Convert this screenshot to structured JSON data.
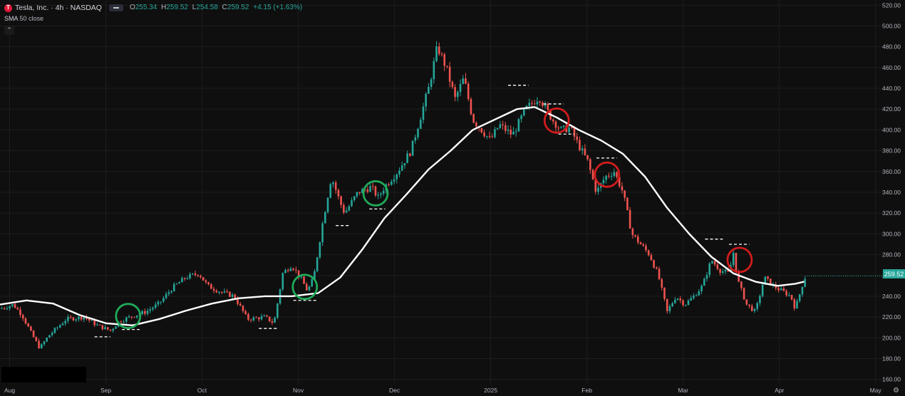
{
  "header": {
    "logo_letter": "T",
    "title": "Tesla, Inc. · 4h · NASDAQ",
    "ohlc": {
      "o_key": "O",
      "o_val": "255.34",
      "h_key": "H",
      "h_val": "259.52",
      "l_key": "L",
      "l_val": "254.58",
      "c_key": "C",
      "c_val": "259.52",
      "change": "+4.15 (+1.63%)"
    },
    "sma_name": "SMA",
    "sma_params": "50 close",
    "collapse_icon": "chevron-up-icon"
  },
  "last_price": "259.52",
  "colors": {
    "up": "#26a69a",
    "down": "#ef5350",
    "sma": "#ffffff",
    "support_circle": "#1faa59",
    "resistance_circle": "#d11c1c",
    "level_line": "#ffffff",
    "background": "#0f0f0f"
  },
  "chart_data": {
    "type": "candlestick",
    "title": "Tesla, Inc. · 4h · NASDAQ",
    "y_axis": {
      "ticks": [
        160,
        180,
        200,
        220,
        240,
        260,
        280,
        300,
        320,
        340,
        360,
        380,
        400,
        420,
        440,
        460,
        480,
        500,
        520
      ],
      "labels": [
        "160.00",
        "180.00",
        "200.00",
        "220.00",
        "240.00",
        "260.00",
        "280.00",
        "300.00",
        "320.00",
        "340.00",
        "360.00",
        "380.00",
        "400.00",
        "420.00",
        "440.00",
        "460.00",
        "480.00",
        "500.00",
        "520.00"
      ],
      "ylim": [
        155,
        525
      ]
    },
    "x_axis": {
      "labels": [
        "Aug",
        "Sep",
        "Oct",
        "Nov",
        "Dec",
        "2025",
        "Feb",
        "Mar",
        "Apr",
        "May"
      ],
      "xlim": [
        0,
        100
      ]
    },
    "grid": true,
    "price_path": [
      [
        0,
        228
      ],
      [
        1.5,
        232
      ],
      [
        2.5,
        222
      ],
      [
        3.5,
        205
      ],
      [
        4.5,
        190
      ],
      [
        5.5,
        202
      ],
      [
        6.5,
        210
      ],
      [
        7.5,
        218
      ],
      [
        9.5,
        220
      ],
      [
        11,
        212
      ],
      [
        12.5,
        207
      ],
      [
        13.5,
        216
      ],
      [
        15,
        221
      ],
      [
        16.5,
        225
      ],
      [
        18,
        233
      ],
      [
        19.5,
        248
      ],
      [
        21,
        258
      ],
      [
        22.5,
        262
      ],
      [
        23.5,
        250
      ],
      [
        25,
        244
      ],
      [
        26.5,
        240
      ],
      [
        28,
        218
      ],
      [
        30,
        220
      ],
      [
        31,
        214
      ],
      [
        32,
        262
      ],
      [
        33,
        270
      ],
      [
        34,
        258
      ],
      [
        34.8,
        245
      ],
      [
        35.5,
        258
      ],
      [
        36.5,
        310
      ],
      [
        37.5,
        355
      ],
      [
        38.5,
        330
      ],
      [
        39,
        320
      ],
      [
        40.5,
        340
      ],
      [
        42,
        345
      ],
      [
        42.8,
        335
      ],
      [
        43.5,
        345
      ],
      [
        45,
        360
      ],
      [
        46.5,
        380
      ],
      [
        47.5,
        410
      ],
      [
        48.5,
        440
      ],
      [
        49.5,
        480
      ],
      [
        50.5,
        460
      ],
      [
        51.5,
        430
      ],
      [
        52.5,
        450
      ],
      [
        53.5,
        410
      ],
      [
        54.5,
        400
      ],
      [
        55.5,
        390
      ],
      [
        56.5,
        405
      ],
      [
        58,
        395
      ],
      [
        59.5,
        420
      ],
      [
        61,
        432
      ],
      [
        62.5,
        410
      ],
      [
        63.5,
        400
      ],
      [
        64.5,
        402
      ],
      [
        65.5,
        385
      ],
      [
        66.5,
        370
      ],
      [
        67.5,
        340
      ],
      [
        68.5,
        355
      ],
      [
        69.5,
        360
      ],
      [
        70.5,
        340
      ],
      [
        71.5,
        300
      ],
      [
        72.5,
        290
      ],
      [
        73.5,
        280
      ],
      [
        74.5,
        260
      ],
      [
        75.5,
        225
      ],
      [
        76.5,
        240
      ],
      [
        77.5,
        232
      ],
      [
        78.5,
        240
      ],
      [
        79.5,
        250
      ],
      [
        80.5,
        275
      ],
      [
        81.5,
        265
      ],
      [
        82.5,
        262
      ],
      [
        83,
        282
      ],
      [
        83.5,
        255
      ],
      [
        84.5,
        232
      ],
      [
        85.5,
        225
      ],
      [
        86.5,
        258
      ],
      [
        87.5,
        250
      ],
      [
        88.5,
        245
      ],
      [
        89.5,
        240
      ],
      [
        90,
        228
      ],
      [
        90.5,
        242
      ],
      [
        91,
        257
      ],
      [
        91.3,
        259.52
      ]
    ],
    "series": [
      {
        "name": "SMA",
        "type": "line",
        "points": [
          [
            0,
            232
          ],
          [
            3,
            236
          ],
          [
            6,
            233
          ],
          [
            9,
            222
          ],
          [
            12,
            214
          ],
          [
            15,
            212
          ],
          [
            18,
            218
          ],
          [
            21,
            226
          ],
          [
            24,
            233
          ],
          [
            27,
            238
          ],
          [
            30,
            240
          ],
          [
            33,
            240
          ],
          [
            36,
            243
          ],
          [
            38.5,
            258
          ],
          [
            41,
            285
          ],
          [
            43.5,
            315
          ],
          [
            46,
            338
          ],
          [
            48.5,
            362
          ],
          [
            51,
            380
          ],
          [
            53.5,
            400
          ],
          [
            56,
            410
          ],
          [
            58.5,
            420
          ],
          [
            60.5,
            422
          ],
          [
            63,
            412
          ],
          [
            65.5,
            400
          ],
          [
            68,
            390
          ],
          [
            70.5,
            377
          ],
          [
            73,
            355
          ],
          [
            75.5,
            325
          ],
          [
            78,
            300
          ],
          [
            80.5,
            278
          ],
          [
            83,
            262
          ],
          [
            85.5,
            254
          ],
          [
            88,
            250
          ],
          [
            90,
            252
          ],
          [
            91,
            254
          ]
        ]
      }
    ],
    "annotations": {
      "circles": [
        {
          "x": 14.5,
          "y": 221,
          "type": "support"
        },
        {
          "x": 34.5,
          "y": 249,
          "type": "support"
        },
        {
          "x": 42.5,
          "y": 339,
          "type": "support"
        },
        {
          "x": 63,
          "y": 409,
          "type": "resistance"
        },
        {
          "x": 68.7,
          "y": 357,
          "type": "resistance"
        },
        {
          "x": 83.7,
          "y": 275,
          "type": "resistance"
        }
      ],
      "level_lines": [
        {
          "x1": 10.7,
          "x2": 12.5,
          "y": 201
        },
        {
          "x1": 13.8,
          "x2": 15.8,
          "y": 208
        },
        {
          "x1": 29.3,
          "x2": 31.5,
          "y": 209
        },
        {
          "x1": 33.2,
          "x2": 35.8,
          "y": 236
        },
        {
          "x1": 38,
          "x2": 39.6,
          "y": 308
        },
        {
          "x1": 41.8,
          "x2": 43.6,
          "y": 324
        },
        {
          "x1": 57.5,
          "x2": 59.8,
          "y": 443
        },
        {
          "x1": 61.5,
          "x2": 63.8,
          "y": 425
        },
        {
          "x1": 63.2,
          "x2": 65,
          "y": 396
        },
        {
          "x1": 67.5,
          "x2": 69.8,
          "y": 373
        },
        {
          "x1": 79.8,
          "x2": 81.8,
          "y": 295
        },
        {
          "x1": 82.5,
          "x2": 84.8,
          "y": 290
        }
      ]
    }
  },
  "footer": {
    "settings_icon": "gear-icon"
  }
}
